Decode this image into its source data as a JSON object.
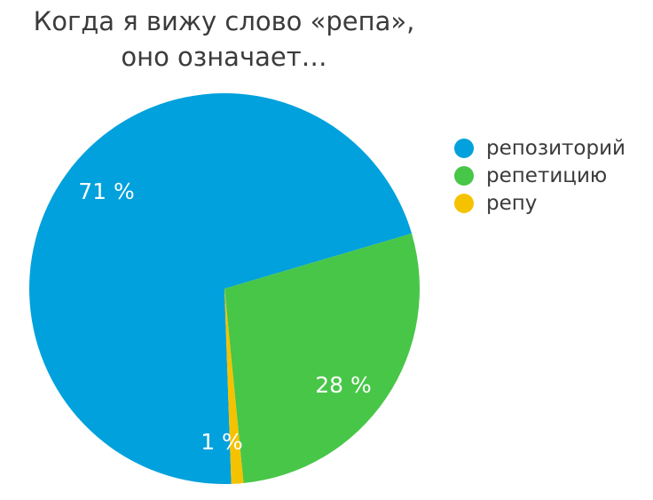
{
  "chart_data": {
    "type": "pie",
    "title": [
      "Когда я вижу слово «репа»,",
      "оно означает…"
    ],
    "categories": [
      "репозиторий",
      "репетицию",
      "репу"
    ],
    "values": [
      71,
      28,
      1
    ],
    "data_labels": [
      "71 %",
      "28 %",
      "1 %"
    ],
    "colors": [
      "#00a1dc",
      "#48c648",
      "#f5c200"
    ],
    "legend_placement": "right"
  }
}
